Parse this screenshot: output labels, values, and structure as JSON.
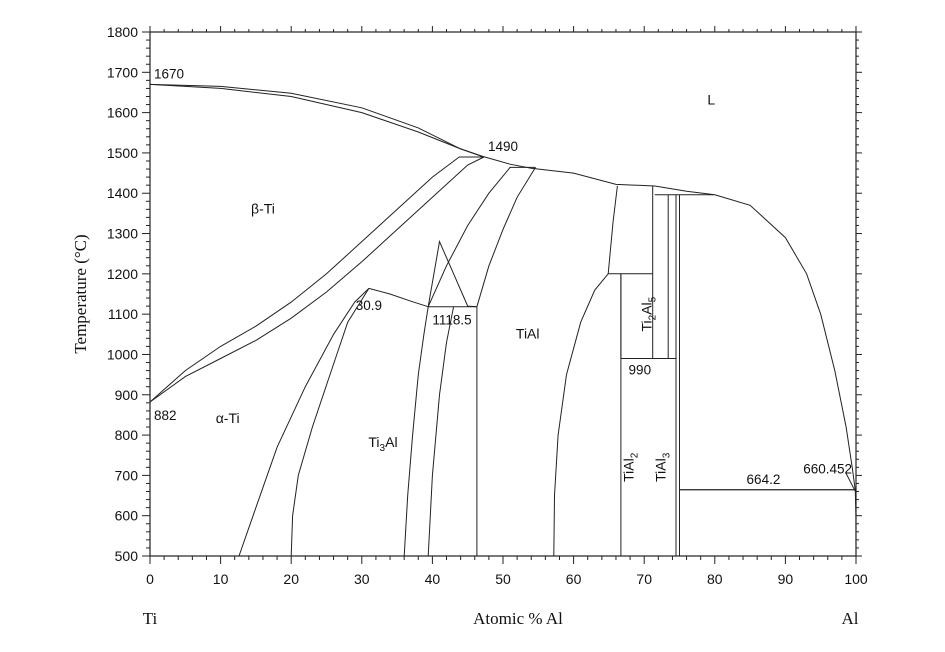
{
  "chart_data": {
    "type": "phase-diagram",
    "xlabel": "Atomic % Al",
    "ylabel": "Temperature (°C)",
    "xlim": [
      0,
      100
    ],
    "ylim": [
      500,
      1800
    ],
    "xticks": [
      0,
      10,
      20,
      30,
      40,
      50,
      60,
      70,
      80,
      90,
      100
    ],
    "yticks": [
      500,
      600,
      700,
      800,
      900,
      1000,
      1100,
      1200,
      1300,
      1400,
      1500,
      1600,
      1700,
      1800
    ],
    "x_end_labels": {
      "left": "Ti",
      "right": "Al"
    },
    "grid": false,
    "annotations": [
      {
        "text": "1670",
        "x": 0,
        "y": 1670
      },
      {
        "text": "1490",
        "x": 47.3,
        "y": 1490
      },
      {
        "text": "882",
        "x": 0,
        "y": 882
      },
      {
        "text": "30.9",
        "x": 31.0,
        "y": 1160
      },
      {
        "text": "1118.5",
        "x": 40,
        "y": 1118.5
      },
      {
        "text": "990",
        "x": 67.5,
        "y": 990
      },
      {
        "text": "664.2",
        "x": 76,
        "y": 664.2
      },
      {
        "text": "660.452",
        "x": 100,
        "y": 660.452
      }
    ],
    "regions": [
      {
        "label": "L",
        "x": 79.5,
        "y": 1620
      },
      {
        "label": "β-Ti",
        "x": 16,
        "y": 1350
      },
      {
        "label": "α-Ti",
        "x": 11,
        "y": 830
      },
      {
        "label": "Ti3Al",
        "x": 33,
        "y": 770
      },
      {
        "label": "TiAl",
        "x": 53.5,
        "y": 1040
      },
      {
        "label": "TiAl2",
        "x": 68.5,
        "y": 720
      },
      {
        "label": "TiAl3",
        "x": 73,
        "y": 720
      },
      {
        "label": "Ti2Al5",
        "x": 71,
        "y": 1100
      }
    ],
    "curves": [
      {
        "name": "liquidus",
        "points": [
          [
            0,
            1670
          ],
          [
            10,
            1660
          ],
          [
            20,
            1640
          ],
          [
            30,
            1600
          ],
          [
            38,
            1552
          ],
          [
            44,
            1510
          ],
          [
            47,
            1492
          ],
          [
            51,
            1472
          ],
          [
            54,
            1462
          ],
          [
            60,
            1450
          ],
          [
            66,
            1422
          ],
          [
            71.5,
            1418
          ],
          [
            76,
            1405
          ],
          [
            80,
            1396
          ],
          [
            85,
            1370
          ],
          [
            90,
            1290
          ],
          [
            93,
            1200
          ],
          [
            95,
            1100
          ],
          [
            97,
            960
          ],
          [
            98.6,
            820
          ],
          [
            99.5,
            715
          ],
          [
            99.9,
            662
          ]
        ]
      },
      {
        "name": "beta-solidus",
        "points": [
          [
            0,
            1670
          ],
          [
            10,
            1665
          ],
          [
            20,
            1648
          ],
          [
            30,
            1612
          ],
          [
            38,
            1562
          ],
          [
            44,
            1510
          ],
          [
            47.3,
            1490
          ]
        ]
      },
      {
        "name": "beta-transus",
        "points": [
          [
            0,
            882
          ],
          [
            5,
            960
          ],
          [
            10,
            1020
          ],
          [
            15,
            1070
          ],
          [
            20,
            1130
          ],
          [
            25,
            1200
          ],
          [
            30,
            1280
          ],
          [
            35,
            1360
          ],
          [
            40,
            1440
          ],
          [
            43.8,
            1490
          ]
        ]
      },
      {
        "name": "alpha-transus",
        "points": [
          [
            0,
            882
          ],
          [
            5,
            945
          ],
          [
            10,
            990
          ],
          [
            15,
            1035
          ],
          [
            20,
            1090
          ],
          [
            25,
            1155
          ],
          [
            30,
            1230
          ],
          [
            35,
            1310
          ],
          [
            40,
            1390
          ],
          [
            45,
            1470
          ],
          [
            47.3,
            1490
          ]
        ]
      },
      {
        "name": "alpha-ti3al-left",
        "points": [
          [
            12.6,
            500
          ],
          [
            15,
            620
          ],
          [
            18,
            770
          ],
          [
            22,
            920
          ],
          [
            26,
            1050
          ],
          [
            29,
            1130
          ],
          [
            31,
            1164
          ]
        ]
      },
      {
        "name": "alpha-ti3al-right",
        "points": [
          [
            31,
            1164
          ],
          [
            34,
            1150
          ],
          [
            37,
            1132
          ],
          [
            39.4,
            1118.5
          ]
        ]
      },
      {
        "name": "ti3al-left",
        "points": [
          [
            20,
            500
          ],
          [
            20.2,
            600
          ],
          [
            21,
            700
          ],
          [
            23,
            820
          ],
          [
            25.5,
            950
          ],
          [
            28,
            1080
          ],
          [
            31,
            1164
          ]
        ]
      },
      {
        "name": "ti3al-right",
        "points": [
          [
            36,
            500
          ],
          [
            36.5,
            650
          ],
          [
            37.2,
            800
          ],
          [
            38,
            950
          ],
          [
            38.8,
            1050
          ],
          [
            39.4,
            1118.5
          ]
        ]
      },
      {
        "name": "alpha-tial-left",
        "points": [
          [
            46.3,
            1118.5
          ],
          [
            45,
            1120
          ],
          [
            43,
            1200
          ],
          [
            41,
            1280
          ],
          [
            39.4,
            1118.5
          ]
        ]
      },
      {
        "name": "tial-a",
        "points": [
          [
            39.4,
            500
          ],
          [
            40,
            700
          ],
          [
            41,
            900
          ],
          [
            42,
            1030
          ],
          [
            43,
            1118.5
          ]
        ]
      },
      {
        "name": "tial-b",
        "points": [
          [
            39.4,
            1118.5
          ],
          [
            42,
            1220
          ],
          [
            45,
            1320
          ],
          [
            48,
            1400
          ],
          [
            51,
            1464
          ]
        ]
      },
      {
        "name": "tial-c",
        "points": [
          [
            46.3,
            1118.5
          ],
          [
            48,
            1220
          ],
          [
            50,
            1310
          ],
          [
            52,
            1390
          ],
          [
            54.6,
            1464
          ]
        ]
      },
      {
        "name": "tial-left-solvus",
        "points": [
          [
            46.3,
            500
          ],
          [
            46.3,
            1118.5
          ]
        ]
      },
      {
        "name": "beta-alpha-left",
        "points": [
          [
            43.8,
            1490
          ],
          [
            45,
            1490
          ],
          [
            47.3,
            1490
          ]
        ]
      },
      {
        "name": "tial-right-solvus",
        "points": [
          [
            57.2,
            500
          ],
          [
            57.3,
            650
          ],
          [
            57.8,
            800
          ],
          [
            59,
            950
          ],
          [
            61,
            1080
          ],
          [
            63,
            1160
          ],
          [
            64.9,
            1200
          ]
        ]
      },
      {
        "name": "ti2al5-left",
        "points": [
          [
            64.9,
            1200
          ],
          [
            65.6,
            1330
          ],
          [
            66.2,
            1418
          ]
        ]
      },
      {
        "name": "tial2-right",
        "points": [
          [
            66.7,
            500
          ],
          [
            66.7,
            1200
          ]
        ]
      },
      {
        "name": "tial3-left",
        "points": [
          [
            74.5,
            500
          ],
          [
            74.5,
            1396
          ]
        ]
      },
      {
        "name": "tial3-right",
        "points": [
          [
            75,
            500
          ],
          [
            75,
            1396
          ]
        ]
      },
      {
        "name": "tial3-line",
        "points": [
          [
            75,
            664.2
          ],
          [
            99.9,
            664.2
          ]
        ]
      },
      {
        "name": "al-solvus",
        "points": [
          [
            99.9,
            660.452
          ],
          [
            99.98,
            600
          ],
          [
            100,
            500
          ]
        ]
      }
    ],
    "horizontal_lines": [
      {
        "x": [
          43.8,
          47.3
        ],
        "y": 1490
      },
      {
        "x": [
          50.9,
          54.6
        ],
        "y": 1464
      },
      {
        "x": [
          64.9,
          71.2
        ],
        "y": 1200
      },
      {
        "x": [
          39.4,
          46.3
        ],
        "y": 1118.5
      },
      {
        "x": [
          66.7,
          74.5
        ],
        "y": 990
      },
      {
        "x": [
          71.5,
          79.9
        ],
        "y": 1396
      },
      {
        "x": [
          75,
          99.9
        ],
        "y": 664.2
      }
    ],
    "vertical_lines": [
      {
        "x": 71.2,
        "y": [
          990,
          1418
        ]
      },
      {
        "x": 73.4,
        "y": [
          990,
          1396
        ]
      },
      {
        "x": 66.7,
        "y": [
          990,
          1200
        ]
      }
    ]
  }
}
